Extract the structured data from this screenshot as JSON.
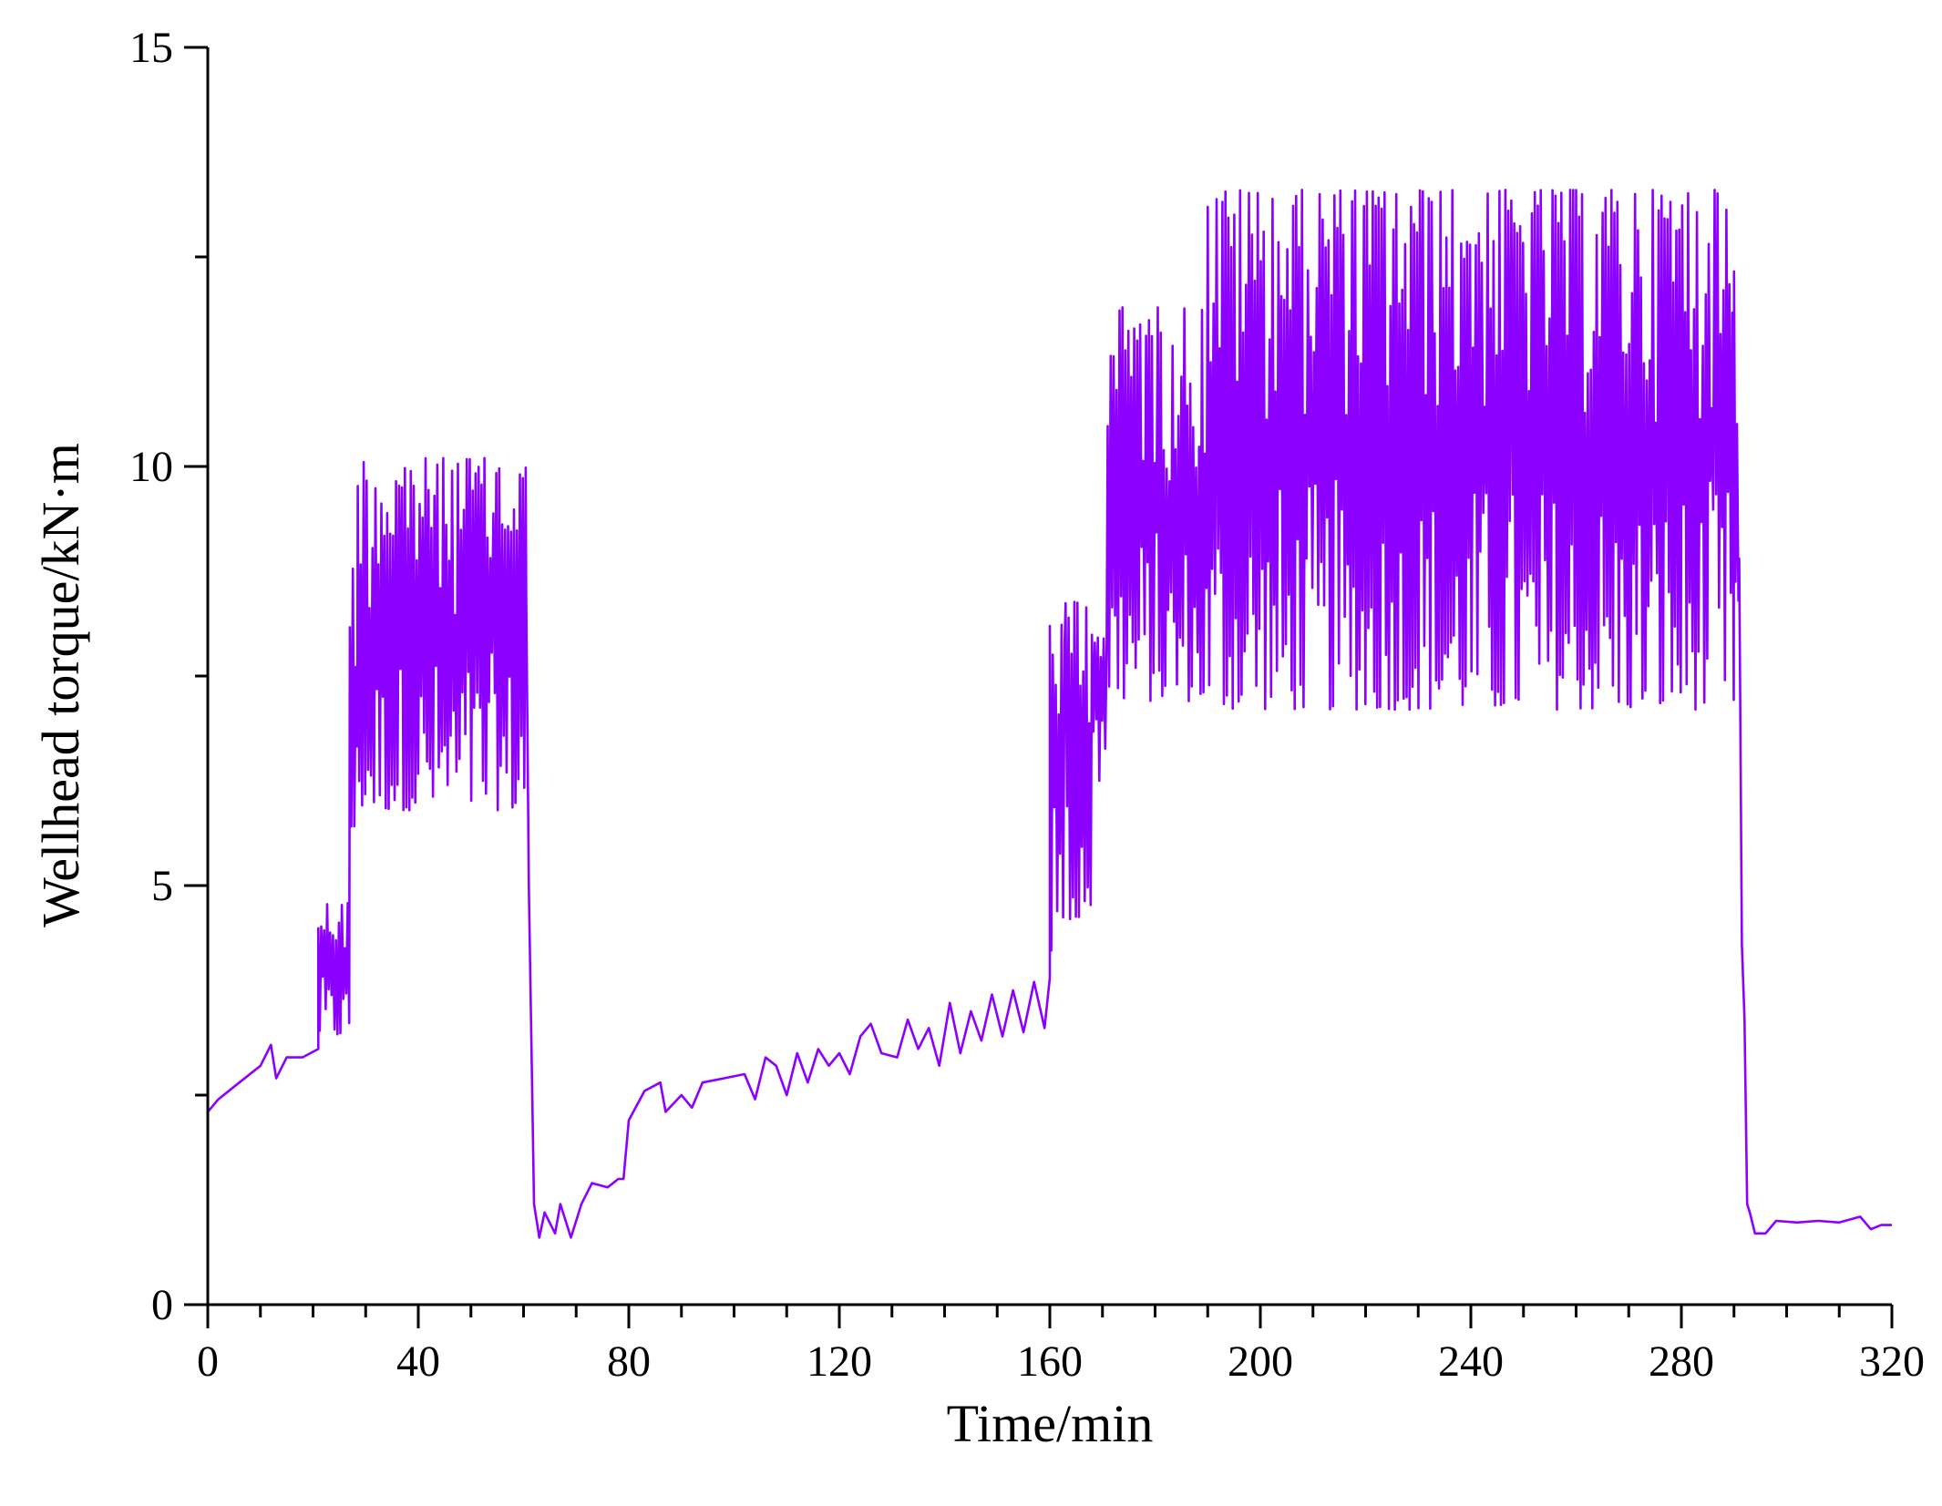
{
  "chart_data": {
    "type": "line",
    "title": "",
    "xlabel": "Time/min",
    "ylabel": "Wellhead torque/kN·m",
    "xlim": [
      0,
      320
    ],
    "ylim": [
      0,
      15
    ],
    "x_major_ticks": [
      0,
      40,
      80,
      120,
      160,
      200,
      240,
      280,
      320
    ],
    "x_tick_labels": [
      "0",
      "40",
      "80",
      "120",
      "160",
      "200",
      "240",
      "280",
      "320"
    ],
    "x_minor_step": 10,
    "y_major_ticks": [
      0,
      5,
      10,
      15
    ],
    "y_tick_labels": [
      "0",
      "5",
      "10",
      "15"
    ],
    "y_minor_step": 2.5,
    "grid": false,
    "legend": "none",
    "line_color": "#8B00FF",
    "series": [
      {
        "segments": [
          {
            "mode": "smooth",
            "points": [
              [
                0,
                2.3
              ],
              [
                2,
                2.45
              ],
              [
                6,
                2.65
              ],
              [
                10,
                2.85
              ],
              [
                12,
                3.1
              ],
              [
                13,
                2.7
              ],
              [
                15,
                2.95
              ],
              [
                18,
                2.95
              ],
              [
                21,
                3.05
              ]
            ]
          },
          {
            "mode": "band",
            "x0": 21,
            "x1": 27,
            "low": 3.2,
            "high": 4.8
          },
          {
            "mode": "band",
            "x0": 27,
            "x1": 28.5,
            "low": 5.5,
            "high": 8.9
          },
          {
            "mode": "band",
            "x0": 28.5,
            "x1": 60.5,
            "low": 5.9,
            "high": 10.1
          },
          {
            "mode": "smooth",
            "points": [
              [
                60.5,
                8.5
              ],
              [
                61,
                5.0
              ],
              [
                62,
                1.2
              ],
              [
                63,
                0.8
              ],
              [
                64,
                1.1
              ],
              [
                66,
                0.85
              ],
              [
                67,
                1.2
              ],
              [
                69,
                0.8
              ],
              [
                71,
                1.2
              ],
              [
                73,
                1.45
              ],
              [
                76,
                1.4
              ],
              [
                78,
                1.5
              ],
              [
                79,
                1.5
              ],
              [
                80,
                2.2
              ],
              [
                83,
                2.55
              ],
              [
                86,
                2.65
              ],
              [
                87,
                2.3
              ],
              [
                90,
                2.5
              ],
              [
                92,
                2.35
              ],
              [
                94,
                2.65
              ],
              [
                98,
                2.7
              ],
              [
                102,
                2.75
              ],
              [
                104,
                2.45
              ],
              [
                106,
                2.95
              ],
              [
                108,
                2.85
              ],
              [
                110,
                2.5
              ],
              [
                112,
                3.0
              ],
              [
                114,
                2.65
              ],
              [
                116,
                3.05
              ],
              [
                118,
                2.85
              ],
              [
                120,
                3.0
              ],
              [
                122,
                2.75
              ],
              [
                124,
                3.2
              ],
              [
                126,
                3.35
              ],
              [
                128,
                3.0
              ],
              [
                131,
                2.95
              ],
              [
                133,
                3.4
              ],
              [
                135,
                3.05
              ],
              [
                137,
                3.3
              ],
              [
                139,
                2.85
              ],
              [
                141,
                3.6
              ],
              [
                143,
                3.0
              ],
              [
                145,
                3.5
              ],
              [
                147,
                3.15
              ],
              [
                149,
                3.7
              ],
              [
                151,
                3.2
              ],
              [
                153,
                3.75
              ],
              [
                155,
                3.25
              ],
              [
                157,
                3.85
              ],
              [
                159,
                3.3
              ],
              [
                160,
                3.9
              ]
            ]
          },
          {
            "mode": "band",
            "x0": 160,
            "x1": 163,
            "low": 4.2,
            "high": 8.3
          },
          {
            "mode": "band",
            "x0": 163,
            "x1": 168,
            "low": 4.6,
            "high": 8.4
          },
          {
            "mode": "band",
            "x0": 168,
            "x1": 171,
            "low": 6.2,
            "high": 8.0
          },
          {
            "mode": "band",
            "x0": 171,
            "x1": 190,
            "low": 7.2,
            "high": 11.9
          },
          {
            "mode": "band",
            "x0": 190,
            "x1": 290,
            "low": 7.1,
            "high": 13.3
          },
          {
            "mode": "band",
            "x0": 290,
            "x1": 291,
            "low": 7.5,
            "high": 12.6
          },
          {
            "mode": "smooth",
            "points": [
              [
                291,
                8.9
              ],
              [
                291.5,
                4.3
              ],
              [
                292,
                3.4
              ],
              [
                292.5,
                1.2
              ],
              [
                293,
                1.1
              ],
              [
                294,
                0.85
              ],
              [
                296,
                0.85
              ],
              [
                298,
                1.0
              ],
              [
                302,
                0.98
              ],
              [
                306,
                1.0
              ],
              [
                310,
                0.98
              ],
              [
                314,
                1.05
              ],
              [
                316,
                0.9
              ],
              [
                318,
                0.95
              ],
              [
                320,
                0.95
              ]
            ]
          }
        ]
      }
    ]
  }
}
